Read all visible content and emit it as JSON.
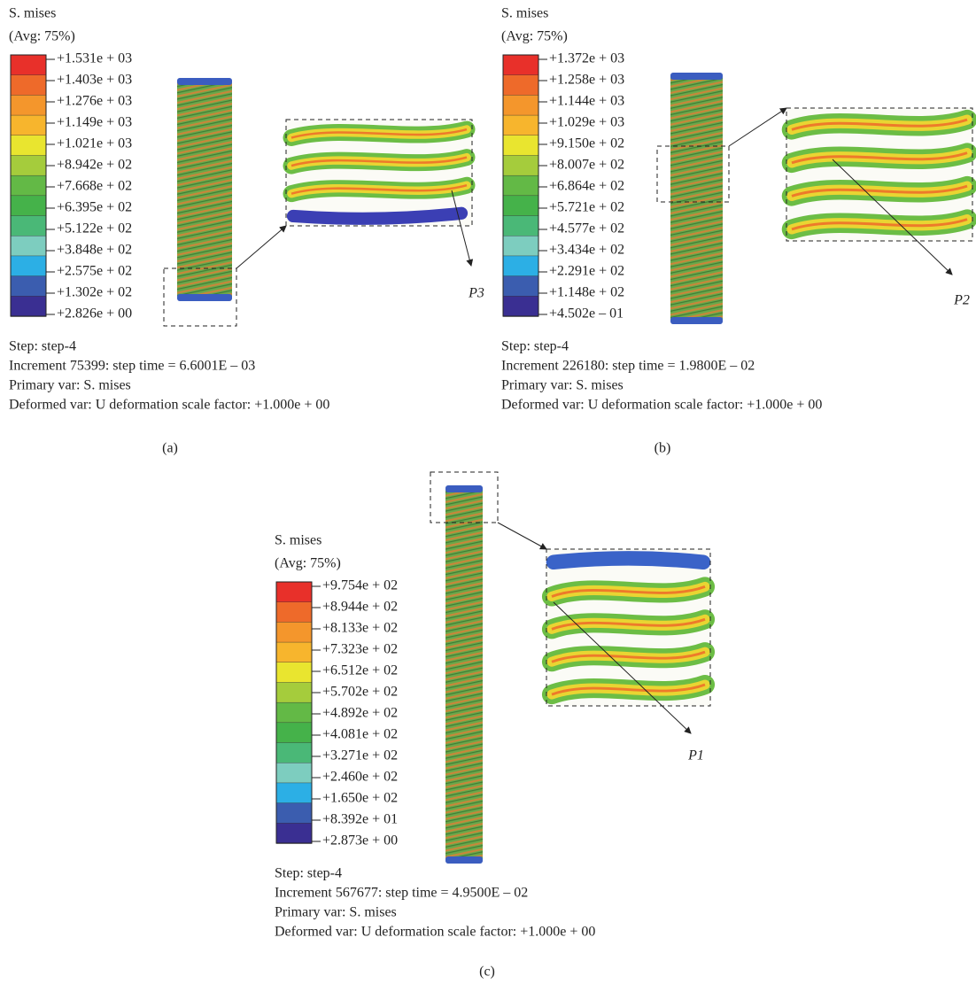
{
  "colorbar_colors": [
    "#e8302a",
    "#ee6a2a",
    "#f4962c",
    "#f7b52d",
    "#e9e52f",
    "#a5cc3c",
    "#63b946",
    "#45b24a",
    "#4ab877",
    "#7dcdbf",
    "#2cafe5",
    "#3b5daf",
    "#3a2f92"
  ],
  "panels": [
    {
      "legend_title": "S. mises",
      "averaging": "(Avg: 75%)",
      "legend_labels": [
        "+1.531e + 03",
        "+1.403e + 03",
        "+1.276e + 03",
        "+1.149e + 03",
        "+1.021e + 03",
        "+8.942e + 02",
        "+7.668e + 02",
        "+6.395e + 02",
        "+5.122e + 02",
        "+3.848e + 02",
        "+2.575e + 02",
        "+1.302e + 02",
        "+2.826e + 00"
      ],
      "step": "Step: step-4",
      "increment": "Increment 75399: step time = 6.6001E – 03",
      "primary_var": "Primary var: S. mises",
      "deformed_var": "Deformed var: U deformation scale factor: +1.000e + 00",
      "point": "P3",
      "caption": "(a)"
    },
    {
      "legend_title": "S. mises",
      "averaging": "(Avg: 75%)",
      "legend_labels": [
        "+1.372e + 03",
        "+1.258e + 03",
        "+1.144e + 03",
        "+1.029e + 03",
        "+9.150e + 02",
        "+8.007e + 02",
        "+6.864e + 02",
        "+5.721e + 02",
        "+4.577e + 02",
        "+3.434e + 02",
        "+2.291e + 02",
        "+1.148e + 02",
        "+4.502e – 01"
      ],
      "step": "Step: step-4",
      "increment": "Increment 226180: step time = 1.9800E – 02",
      "primary_var": "Primary var: S. mises",
      "deformed_var": "Deformed var: U deformation scale factor: +1.000e + 00",
      "point": "P2",
      "caption": "(b)"
    },
    {
      "legend_title": "S. mises",
      "averaging": "(Avg: 75%)",
      "legend_labels": [
        "+9.754e + 02",
        "+8.944e + 02",
        "+8.133e + 02",
        "+7.323e + 02",
        "+6.512e + 02",
        "+5.702e + 02",
        "+4.892e + 02",
        "+4.081e + 02",
        "+3.271e + 02",
        "+2.460e + 02",
        "+1.650e + 02",
        "+8.392e + 01",
        "+2.873e + 00"
      ],
      "step": "Step: step-4",
      "increment": "Increment 567677: step time = 4.9500E – 02",
      "primary_var": "Primary var: S. mises",
      "deformed_var": "Deformed var: U deformation scale factor: +1.000e + 00",
      "point": "P1",
      "caption": "(c)"
    }
  ]
}
